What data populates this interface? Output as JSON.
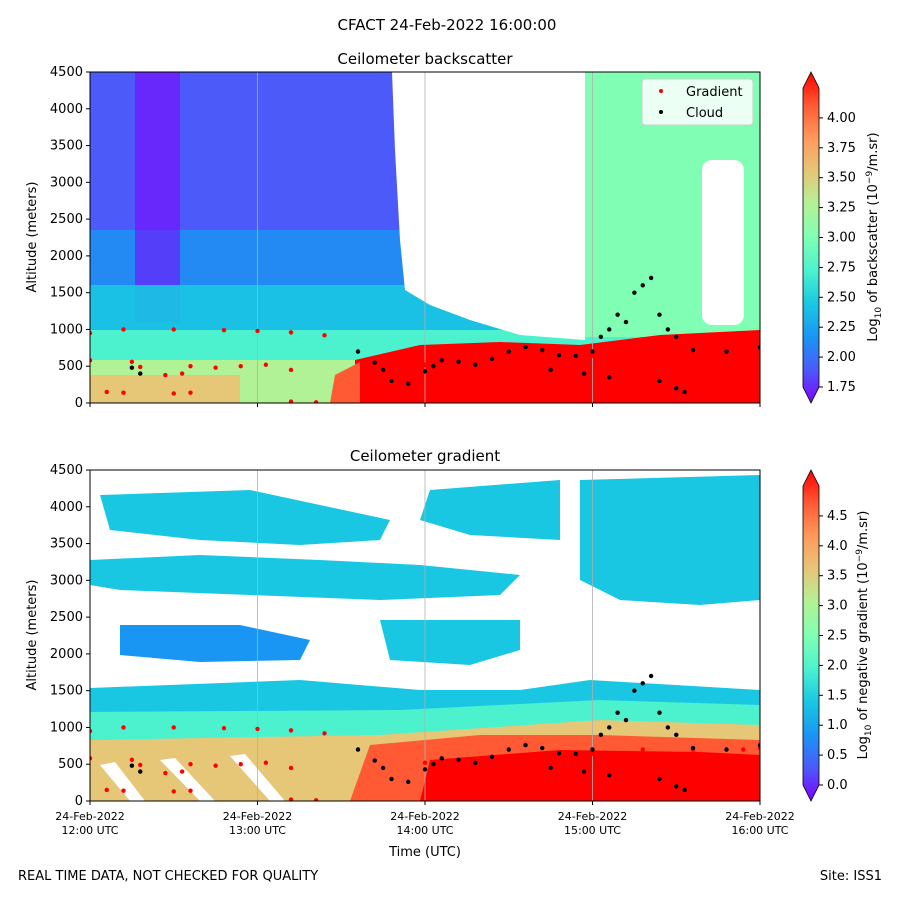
{
  "figure": {
    "title": "CFACT 24-Feb-2022 16:00:00",
    "footer_left": "REAL TIME DATA, NOT CHECKED FOR QUALITY",
    "footer_right": "Site: ISS1"
  },
  "colormap": [
    "#8000ff",
    "#4c5af9",
    "#1996f3",
    "#1ac7e3",
    "#4cf2cd",
    "#80ffb4",
    "#b2f296",
    "#e6c677",
    "#ff9a5c",
    "#ff5a33",
    "#ff0000"
  ],
  "chart_data": [
    {
      "type": "heatmap",
      "title": "Ceilometer backscatter",
      "xlabel": "",
      "ylabel": "Altitude (meters)",
      "ylim": [
        0,
        4500
      ],
      "yticks": [
        0,
        500,
        1000,
        1500,
        2000,
        2500,
        3000,
        3500,
        4000,
        4500
      ],
      "ytick_labels": [
        "0",
        "500",
        "1000",
        "1500",
        "2000",
        "2500",
        "3000",
        "3500",
        "4000",
        "4500"
      ],
      "xlim_hours": [
        12,
        16
      ],
      "xticks_hours": [
        12,
        13,
        14,
        15,
        16
      ],
      "vertical_gridlines_at_hours": [
        13,
        14,
        15
      ],
      "colorbar": {
        "label": "Log10 of backscatter (10⁻⁹/m.sr)",
        "range": [
          1.75,
          4.25
        ],
        "ticks": [
          1.75,
          2.0,
          2.25,
          2.5,
          2.75,
          3.0,
          3.25,
          3.5,
          3.75,
          4.0
        ],
        "tick_labels": [
          "1.75",
          "2.00",
          "2.25",
          "2.50",
          "2.75",
          "3.00",
          "3.25",
          "3.50",
          "3.75",
          "4.00"
        ],
        "extend": "both"
      },
      "legend": {
        "placement": "top-right",
        "entries": [
          {
            "label": "Gradient",
            "color": "#ff0000"
          },
          {
            "label": "Cloud",
            "color": "#000000"
          }
        ]
      },
      "series": [
        {
          "name": "Gradient",
          "color": "#ff0000",
          "points": [
            [
              12.0,
              950
            ],
            [
              12.2,
              1000
            ],
            [
              12.5,
              1000
            ],
            [
              12.8,
              990
            ],
            [
              13.0,
              980
            ],
            [
              13.2,
              960
            ],
            [
              13.4,
              920
            ],
            [
              12.0,
              580
            ],
            [
              12.25,
              560
            ],
            [
              12.3,
              490
            ],
            [
              12.45,
              380
            ],
            [
              12.55,
              400
            ],
            [
              12.6,
              500
            ],
            [
              12.75,
              480
            ],
            [
              12.9,
              500
            ],
            [
              13.05,
              520
            ],
            [
              13.2,
              450
            ],
            [
              12.1,
              150
            ],
            [
              12.2,
              140
            ],
            [
              12.5,
              130
            ],
            [
              12.6,
              140
            ],
            [
              13.2,
              20
            ],
            [
              13.35,
              10
            ],
            [
              14.0,
              520
            ],
            [
              14.3,
              560
            ],
            [
              14.6,
              620
            ],
            [
              15.0,
              640
            ],
            [
              15.3,
              700
            ],
            [
              15.6,
              700
            ],
            [
              15.9,
              700
            ],
            [
              16.0,
              720
            ],
            [
              14.3,
              300
            ],
            [
              14.8,
              200
            ],
            [
              15.1,
              180
            ],
            [
              15.5,
              150
            ],
            [
              15.8,
              200
            ]
          ]
        },
        {
          "name": "Cloud",
          "color": "#000000",
          "points": [
            [
              12.25,
              480
            ],
            [
              12.3,
              400
            ],
            [
              13.6,
              700
            ],
            [
              13.7,
              550
            ],
            [
              13.75,
              450
            ],
            [
              13.8,
              300
            ],
            [
              13.9,
              260
            ],
            [
              14.0,
              430
            ],
            [
              14.05,
              500
            ],
            [
              14.1,
              580
            ],
            [
              14.2,
              560
            ],
            [
              14.3,
              520
            ],
            [
              14.4,
              600
            ],
            [
              14.5,
              700
            ],
            [
              14.6,
              760
            ],
            [
              14.7,
              720
            ],
            [
              14.8,
              650
            ],
            [
              14.9,
              640
            ],
            [
              15.0,
              700
            ],
            [
              15.05,
              900
            ],
            [
              15.1,
              1000
            ],
            [
              15.15,
              1200
            ],
            [
              15.2,
              1100
            ],
            [
              15.25,
              1500
            ],
            [
              15.3,
              1600
            ],
            [
              15.35,
              1700
            ],
            [
              15.4,
              1200
            ],
            [
              15.45,
              1000
            ],
            [
              15.5,
              900
            ],
            [
              15.6,
              720
            ],
            [
              15.8,
              700
            ],
            [
              16.0,
              760
            ],
            [
              14.75,
              450
            ],
            [
              14.95,
              400
            ],
            [
              15.1,
              350
            ],
            [
              15.4,
              300
            ],
            [
              15.5,
              200
            ],
            [
              15.55,
              150
            ]
          ]
        }
      ]
    },
    {
      "type": "heatmap",
      "title": "Ceilometer gradient",
      "xlabel": "Time (UTC)",
      "ylabel": "Altitude (meters)",
      "ylim": [
        0,
        4500
      ],
      "yticks": [
        0,
        500,
        1000,
        1500,
        2000,
        2500,
        3000,
        3500,
        4000,
        4500
      ],
      "ytick_labels": [
        "0",
        "500",
        "1000",
        "1500",
        "2000",
        "2500",
        "3000",
        "3500",
        "4000",
        "4500"
      ],
      "xlim_hours": [
        12,
        16
      ],
      "xticks_hours": [
        12,
        13,
        14,
        15,
        16
      ],
      "xtick_labels": [
        [
          "24-Feb-2022",
          "12:00 UTC"
        ],
        [
          "24-Feb-2022",
          "13:00 UTC"
        ],
        [
          "24-Feb-2022",
          "14:00 UTC"
        ],
        [
          "24-Feb-2022",
          "15:00 UTC"
        ],
        [
          "24-Feb-2022",
          "16:00 UTC"
        ]
      ],
      "vertical_gridlines_at_hours": [
        13,
        14,
        15
      ],
      "colorbar": {
        "label": "Log10 of negative gradient (10⁻⁹/m.sr)",
        "range": [
          0.0,
          5.0
        ],
        "ticks": [
          0.0,
          0.5,
          1.0,
          1.5,
          2.0,
          2.5,
          3.0,
          3.5,
          4.0,
          4.5
        ],
        "tick_labels": [
          "0.0",
          "0.5",
          "1.0",
          "1.5",
          "2.0",
          "2.5",
          "3.0",
          "3.5",
          "4.0",
          "4.5"
        ],
        "extend": "both"
      },
      "series": [
        {
          "name": "Gradient",
          "color": "#ff0000",
          "points": [
            [
              12.0,
              950
            ],
            [
              12.2,
              1000
            ],
            [
              12.5,
              1000
            ],
            [
              12.8,
              990
            ],
            [
              13.0,
              980
            ],
            [
              13.2,
              960
            ],
            [
              13.4,
              920
            ],
            [
              12.0,
              580
            ],
            [
              12.25,
              560
            ],
            [
              12.3,
              490
            ],
            [
              12.45,
              380
            ],
            [
              12.55,
              400
            ],
            [
              12.6,
              500
            ],
            [
              12.75,
              480
            ],
            [
              12.9,
              500
            ],
            [
              13.05,
              520
            ],
            [
              13.2,
              450
            ],
            [
              12.1,
              150
            ],
            [
              12.2,
              140
            ],
            [
              12.5,
              130
            ],
            [
              12.6,
              140
            ],
            [
              13.2,
              20
            ],
            [
              13.35,
              10
            ],
            [
              14.0,
              520
            ],
            [
              14.3,
              560
            ],
            [
              14.6,
              620
            ],
            [
              15.0,
              640
            ],
            [
              15.3,
              700
            ],
            [
              15.6,
              700
            ],
            [
              15.9,
              700
            ],
            [
              16.0,
              720
            ],
            [
              14.3,
              300
            ],
            [
              14.8,
              200
            ],
            [
              15.1,
              180
            ],
            [
              15.5,
              150
            ],
            [
              15.8,
              200
            ]
          ]
        },
        {
          "name": "Cloud",
          "color": "#000000",
          "points": [
            [
              12.25,
              480
            ],
            [
              12.3,
              400
            ],
            [
              13.6,
              700
            ],
            [
              13.7,
              550
            ],
            [
              13.75,
              450
            ],
            [
              13.8,
              300
            ],
            [
              13.9,
              260
            ],
            [
              14.0,
              430
            ],
            [
              14.05,
              500
            ],
            [
              14.1,
              580
            ],
            [
              14.2,
              560
            ],
            [
              14.3,
              520
            ],
            [
              14.4,
              600
            ],
            [
              14.5,
              700
            ],
            [
              14.6,
              760
            ],
            [
              14.7,
              720
            ],
            [
              14.8,
              650
            ],
            [
              14.9,
              640
            ],
            [
              15.0,
              700
            ],
            [
              15.05,
              900
            ],
            [
              15.1,
              1000
            ],
            [
              15.15,
              1200
            ],
            [
              15.2,
              1100
            ],
            [
              15.25,
              1500
            ],
            [
              15.3,
              1600
            ],
            [
              15.35,
              1700
            ],
            [
              15.4,
              1200
            ],
            [
              15.45,
              1000
            ],
            [
              15.5,
              900
            ],
            [
              15.6,
              720
            ],
            [
              15.8,
              700
            ],
            [
              16.0,
              760
            ],
            [
              14.75,
              450
            ],
            [
              14.95,
              400
            ],
            [
              15.1,
              350
            ],
            [
              15.4,
              300
            ],
            [
              15.5,
              200
            ],
            [
              15.55,
              150
            ]
          ]
        }
      ]
    }
  ]
}
